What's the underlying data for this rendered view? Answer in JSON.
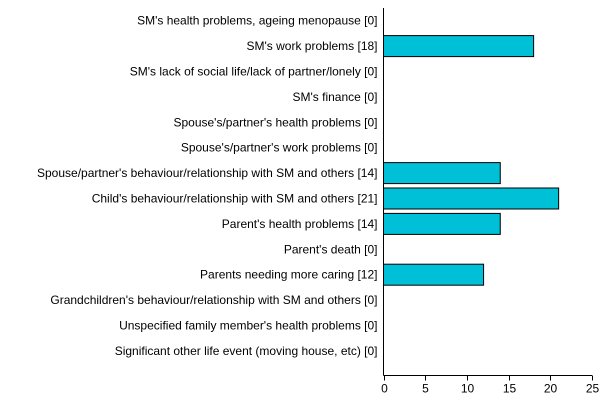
{
  "chart_data": {
    "type": "bar",
    "orientation": "horizontal",
    "title": "",
    "xlabel": "",
    "ylabel": "",
    "categories": [
      "SM's health problems, ageing menopause [0]",
      "SM's work problems [18]",
      "SM's lack of social life/lack of partner/lonely [0]",
      "SM's finance [0]",
      "Spouse's/partner's health problems [0]",
      "Spouse's/partner's work problems [0]",
      "Spouse/partner's behaviour/relationship with SM and others [14]",
      "Child's behaviour/relationship with SM and others [21]",
      "Parent's health problems [14]",
      "Parent's death [0]",
      "Parents needing more caring [12]",
      "Grandchildren's behaviour/relationship with SM and others [0]",
      "Unspecified family member's health problems [0]",
      "Significant other life event (moving house, etc) [0]"
    ],
    "values": [
      0,
      18,
      0,
      0,
      0,
      0,
      14,
      21,
      14,
      0,
      12,
      0,
      0,
      0
    ],
    "xlim": [
      0,
      25
    ],
    "xticks": [
      0,
      5,
      10,
      15,
      20,
      25
    ],
    "xtick_labels": [
      "0",
      "5",
      "10",
      "15",
      "20",
      "25"
    ],
    "grid": false,
    "legend": "none",
    "bar_color": "#00c0d8",
    "bar_edge_color": "#000000"
  }
}
